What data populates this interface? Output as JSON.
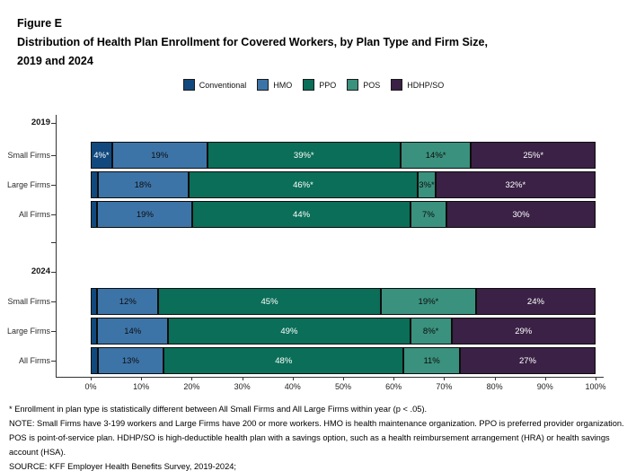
{
  "title": {
    "figure": "Figure E",
    "line1": "Distribution of Health Plan Enrollment for Covered Workers, by Plan Type and Firm Size,",
    "line2": "2019 and 2024"
  },
  "legend": [
    {
      "label": "Conventional",
      "color": "#11497e",
      "text_color": "#ffffff"
    },
    {
      "label": "HMO",
      "color": "#3d74a8",
      "text_color": "#0d0d0d"
    },
    {
      "label": "PPO",
      "color": "#0a6e58",
      "text_color": "#ffffff"
    },
    {
      "label": "POS",
      "color": "#3a917e",
      "text_color": "#0d0d0d"
    },
    {
      "label": "HDHP/SO",
      "color": "#3a2145",
      "text_color": "#ffffff"
    }
  ],
  "chart_data": {
    "type": "bar",
    "stacked": true,
    "orientation": "horizontal",
    "unit": "percent",
    "title": "Distribution of Health Plan Enrollment for Covered Workers, by Plan Type and Firm Size, 2019 and 2024",
    "plans": [
      "Conventional",
      "HMO",
      "PPO",
      "POS",
      "HDHP/SO"
    ],
    "x_axis": {
      "range": [
        0,
        100
      ],
      "ticks": [
        "0%",
        "10%",
        "20%",
        "30%",
        "40%",
        "50%",
        "60%",
        "70%",
        "80%",
        "90%",
        "100%"
      ]
    },
    "groups": [
      {
        "year": "2019",
        "rows": [
          {
            "label": "Small Firms",
            "values": [
              4,
              19,
              39,
              14,
              25
            ],
            "labels": [
              "4%*",
              "19%",
              "39%*",
              "14%*",
              "25%*"
            ]
          },
          {
            "label": "Large Firms",
            "values": [
              1,
              18,
              46,
              3,
              32
            ],
            "labels": [
              "",
              "18%",
              "46%*",
              "3%*",
              "32%*"
            ]
          },
          {
            "label": "All Firms",
            "values": [
              1,
              19,
              44,
              7,
              30
            ],
            "labels": [
              "",
              "19%",
              "44%",
              "7%",
              "30%"
            ]
          }
        ]
      },
      {
        "year": "2024",
        "rows": [
          {
            "label": "Small Firms",
            "values": [
              1,
              12,
              45,
              19,
              24
            ],
            "labels": [
              "",
              "12%",
              "45%",
              "19%*",
              "24%"
            ]
          },
          {
            "label": "Large Firms",
            "values": [
              1,
              14,
              49,
              8,
              29
            ],
            "labels": [
              "",
              "14%",
              "49%",
              "8%*",
              "29%"
            ]
          },
          {
            "label": "All Firms",
            "values": [
              1,
              13,
              48,
              11,
              27
            ],
            "labels": [
              "",
              "13%",
              "48%",
              "11%",
              "27%"
            ]
          }
        ]
      }
    ],
    "legend_position": "top-center",
    "grid": false
  },
  "footnotes": {
    "significance": "* Enrollment in plan type is statistically different between All Small Firms and All Large Firms within year (p < .05).",
    "note": "NOTE: Small Firms have 3-199 workers and Large Firms have 200 or more workers. HMO is health maintenance organization. PPO is preferred provider organization. POS is point-of-service plan. HDHP/SO is high-deductible health plan with a savings option, such as a health reimbursement arrangement (HRA) or health savings account (HSA).",
    "source": "SOURCE: KFF Employer Health Benefits Survey, 2019-2024;"
  }
}
